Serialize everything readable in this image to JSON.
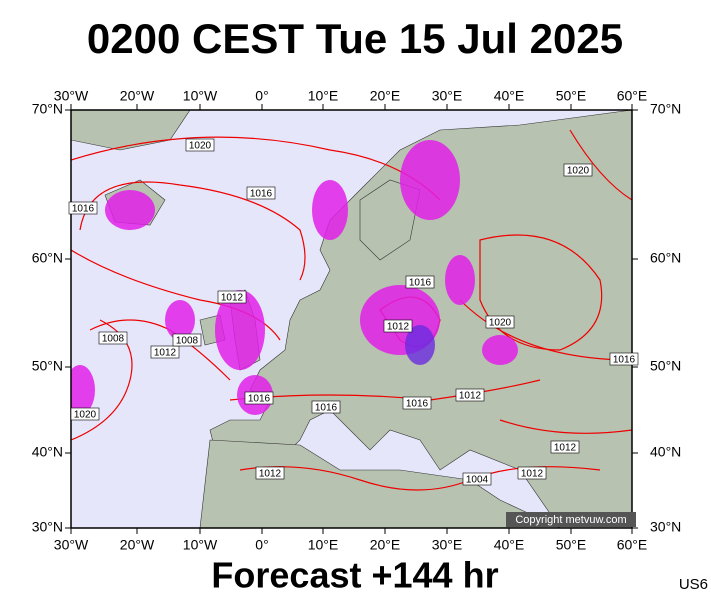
{
  "header": {
    "title": "0200 CEST Tue 15 Jul 2025"
  },
  "footer": {
    "forecast": "Forecast +144 hr",
    "tag": "US6"
  },
  "map": {
    "lon_labels": [
      "30°W",
      "20°W",
      "10°W",
      "0°",
      "10°E",
      "20°E",
      "30°E",
      "40°E",
      "50°E",
      "60°E"
    ],
    "lat_labels": [
      "70°N",
      "60°N",
      "50°N",
      "40°N",
      "30°N"
    ],
    "isobar_labels": [
      "1020",
      "1016",
      "1016",
      "1012",
      "1008",
      "1012",
      "1008",
      "1012",
      "1016",
      "1020",
      "1016",
      "1016",
      "1016",
      "1016",
      "1012",
      "1020",
      "1012",
      "1012",
      "1004",
      "1012",
      "1020"
    ],
    "copyright": "Copyright metvuw.com"
  }
}
